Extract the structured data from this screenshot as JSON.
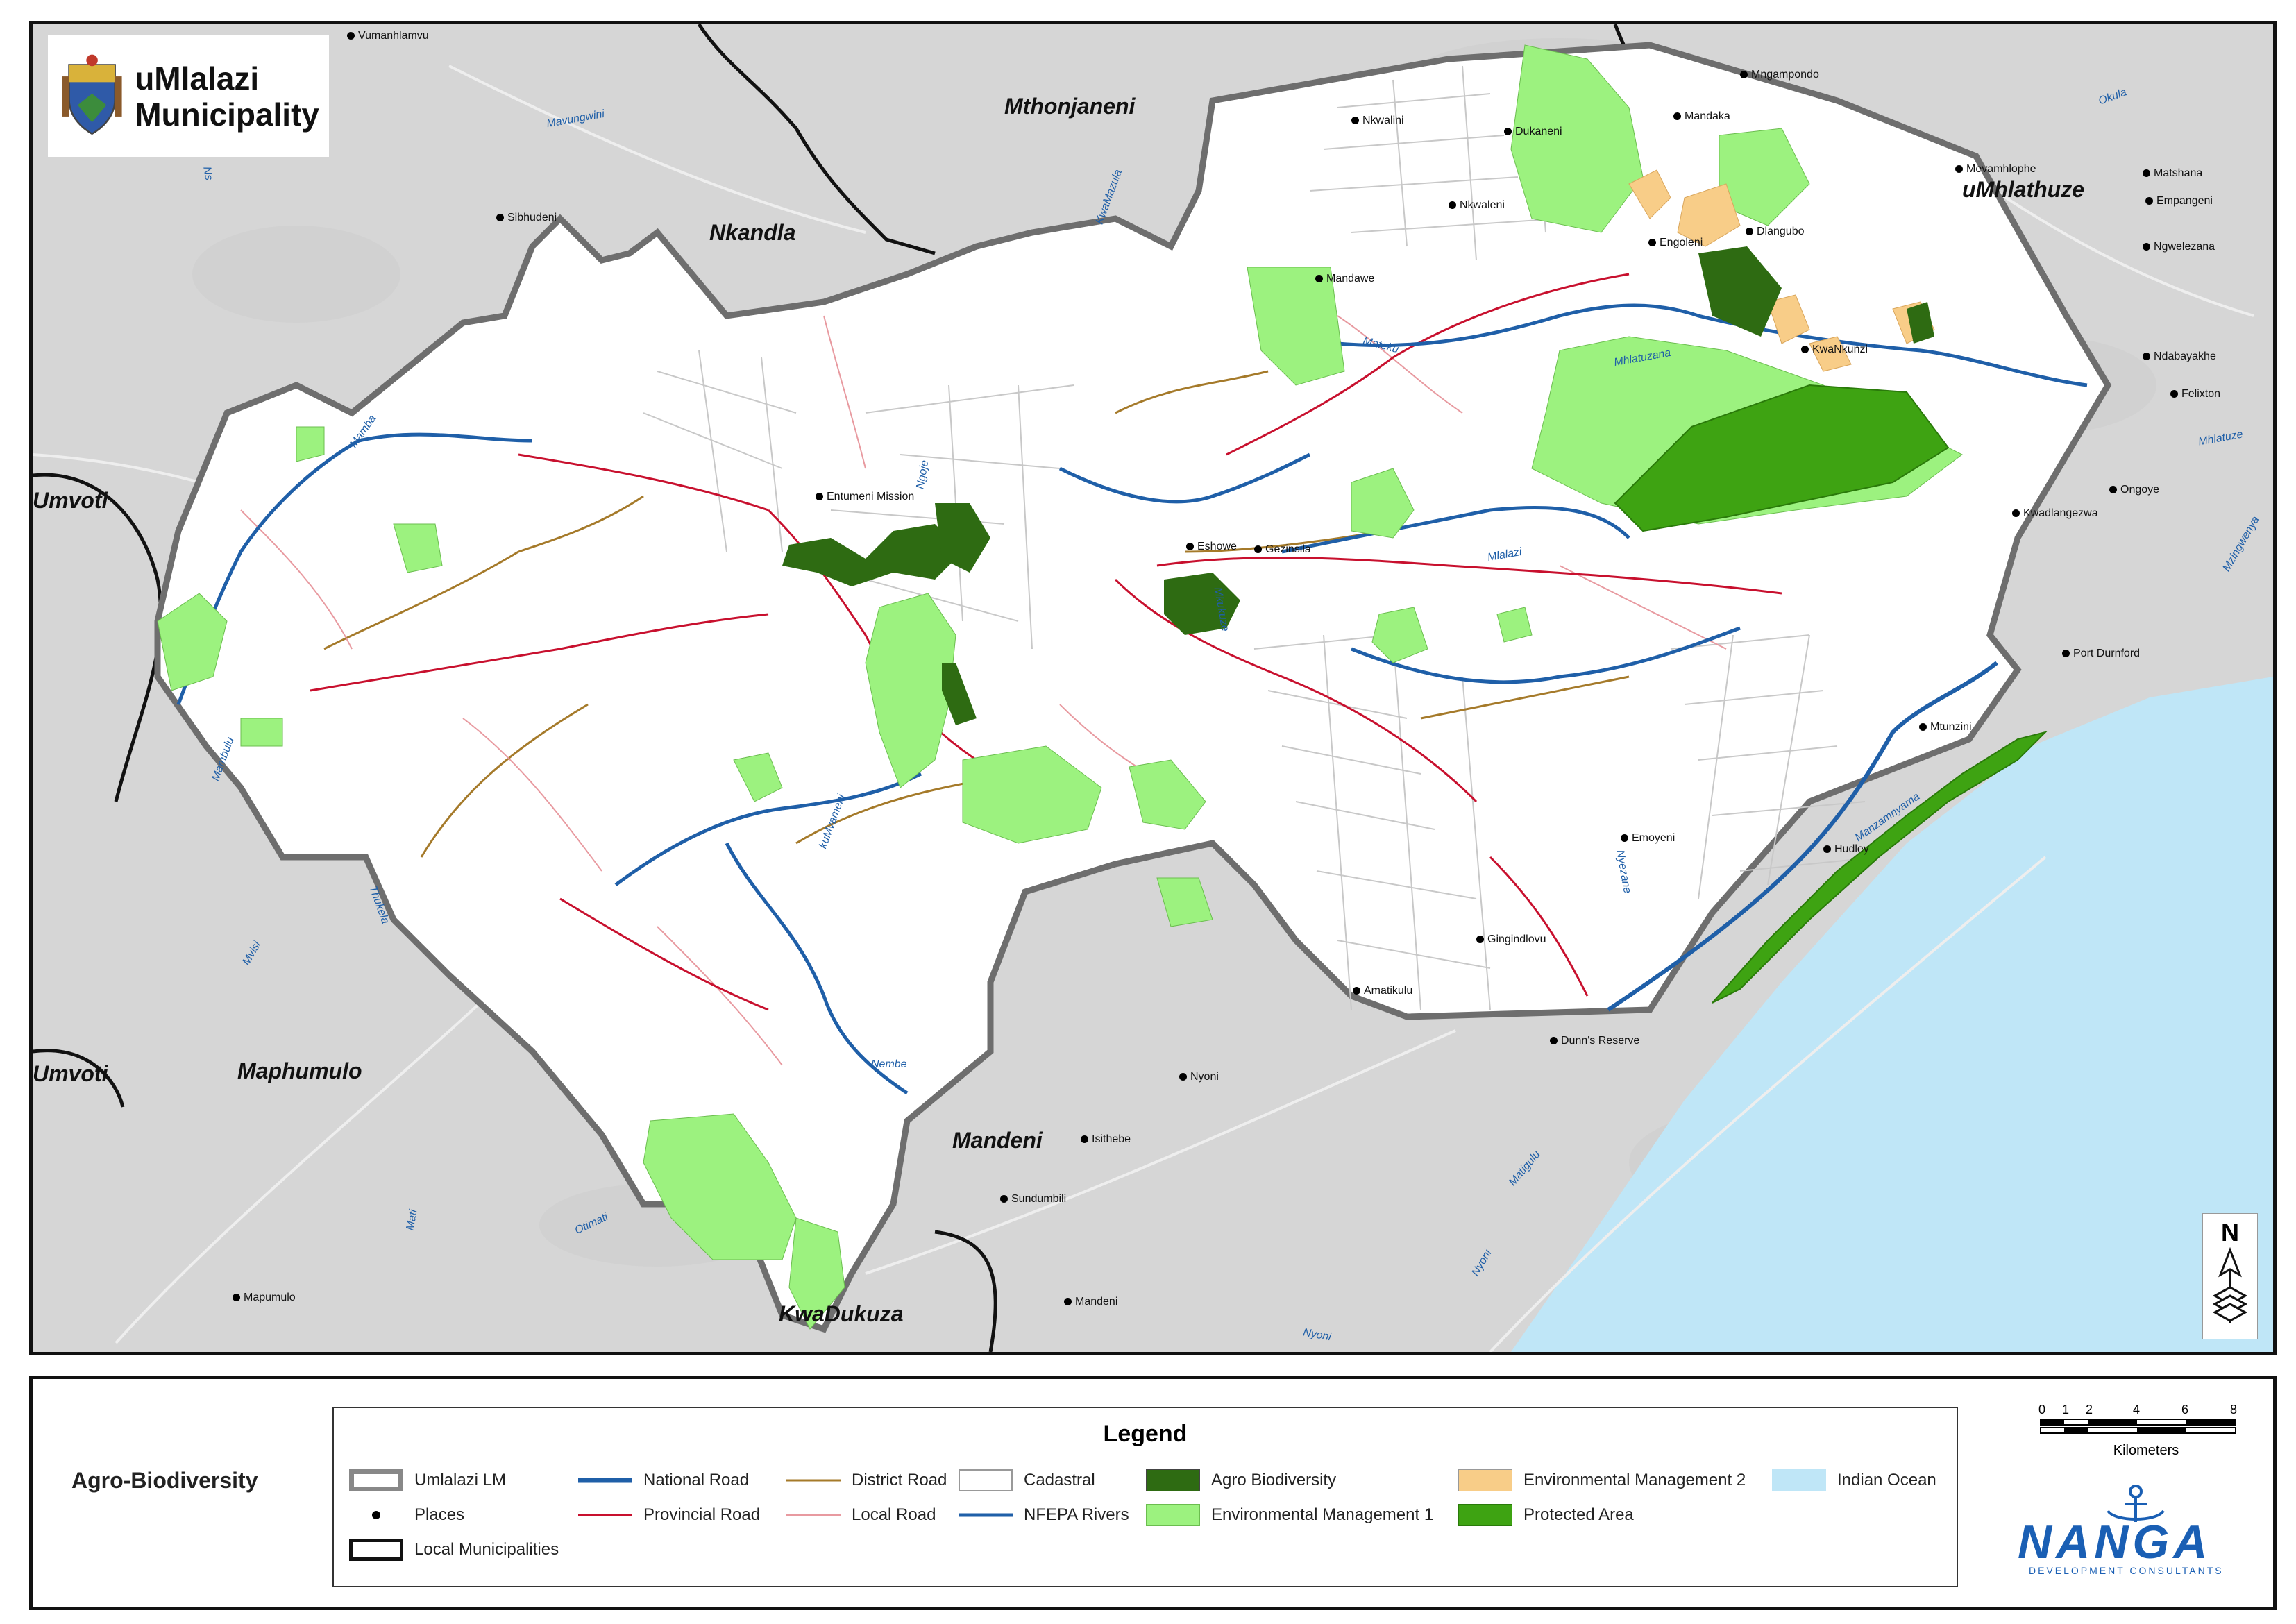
{
  "municipality_logo": {
    "title_line1": "uMlalazi",
    "title_line2": "Municipality",
    "crest_icon": "coat-of-arms-icon"
  },
  "municipality_labels": [
    "Mthonjaneni",
    "Nkandla",
    "uMhlathuze",
    "Umvoti",
    "Umvoti",
    "Maphumulo",
    "Mandeni",
    "KwaDukuza"
  ],
  "places": [
    "Vumanhlamvu",
    "Sibhudeni",
    "Nkwalini",
    "Dukaneni",
    "Mngampondo",
    "Mandaka",
    "Nkwaleni",
    "Engoleni",
    "Dlangubo",
    "Mandawe",
    "KwaNkunzi",
    "Mevamhlophe",
    "Matshana",
    "Empangeni",
    "Ngwelezana",
    "Ndabayakhe",
    "Felixton",
    "Ongoye",
    "Kwadlangezwa",
    "Port Durnford",
    "Entumeni Mission",
    "Eshowe",
    "Gezinsila",
    "Mtunzini",
    "Emoyeni",
    "Hudley",
    "Gingindlovu",
    "Amatikulu",
    "Dunn's Reserve",
    "Nyoni",
    "Isithebe",
    "Sundumbili",
    "Mandeni",
    "Mapumulo"
  ],
  "rivers": [
    "Mavungwini",
    "KwaMazula",
    "Okula",
    "Mamba",
    "Ngoje",
    "Mateku",
    "Mhlatuzana",
    "Mhlatuze",
    "Mlalazi",
    "Mkukuze",
    "Mzingwenya",
    "Mambulu",
    "kuMvameni",
    "Thukela",
    "Mvisi",
    "Nembe",
    "Mati",
    "Otimati",
    "Matigulu",
    "Nyoni",
    "Nyoni",
    "Nyezane",
    "Manzamnyama",
    "Ns"
  ],
  "north_arrow": {
    "letter": "N",
    "icon": "north-arrow-icon"
  },
  "map_title": "Agro-Biodiversity",
  "legend": {
    "heading": "Legend",
    "items": [
      {
        "label": "Umlalazi LM",
        "symbol": "boundary-grey"
      },
      {
        "label": "National Road",
        "symbol": "line-blue-thick"
      },
      {
        "label": "District Road",
        "symbol": "line-brown"
      },
      {
        "label": "Cadastral",
        "symbol": "box-white"
      },
      {
        "label": "Agro Biodiversity",
        "symbol": "fill-darkgreen"
      },
      {
        "label": "Environmental Management 2",
        "symbol": "fill-tan"
      },
      {
        "label": "Indian Ocean",
        "symbol": "fill-lightblue"
      },
      {
        "label": "Places",
        "symbol": "dot"
      },
      {
        "label": "Provincial Road",
        "symbol": "line-red"
      },
      {
        "label": "Local Road",
        "symbol": "line-pink"
      },
      {
        "label": "NFEPA Rivers",
        "symbol": "line-blue"
      },
      {
        "label": "Environmental Management 1",
        "symbol": "fill-lightgreen"
      },
      {
        "label": "Protected Area",
        "symbol": "fill-green"
      },
      {
        "label": "Local Municipalities",
        "symbol": "boundary-black"
      }
    ]
  },
  "scale_bar": {
    "ticks": [
      "0",
      "1",
      "2",
      "4",
      "6",
      "8"
    ],
    "caption": "Kilometers"
  },
  "branding": {
    "name": "NANGA",
    "tagline": "DEVELOPMENT CONSULTANTS"
  },
  "colors": {
    "background_land": "#d6d6d6",
    "study_area": "#ffffff",
    "ocean": "#bfe6f7",
    "national_road": "#1f5fa8",
    "provincial_road": "#c8102e",
    "district_road": "#a57a2a",
    "local_road": "#e89aa0",
    "cadastral": "#bdbdbd",
    "agro_biodiversity": "#2e6b12",
    "env_management_1": "#9cf27f",
    "env_management_2": "#f8cd88",
    "protected_area": "#3ea312"
  }
}
